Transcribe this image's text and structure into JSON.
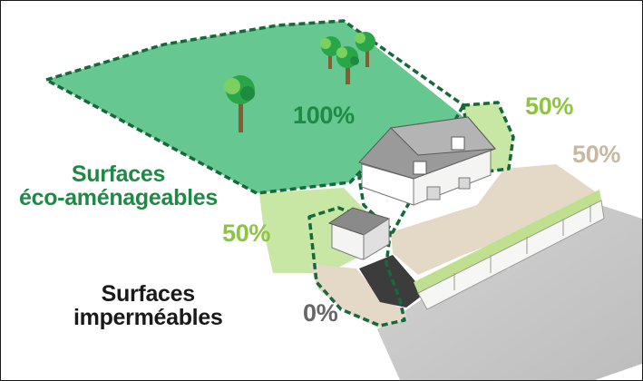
{
  "colors": {
    "dark_green": "#1e8a45",
    "light_green": "#8cc63f",
    "beige": "#c8b89f",
    "grey_text": "#666666",
    "black_text": "#1a1a1a",
    "zone_dark": "#64c48e",
    "zone_light": "#c8e6a4",
    "pavement": "#e3d7c6",
    "shadow": "#c6c6c6"
  },
  "zones": [
    {
      "id": "lawn",
      "percent": "100%"
    },
    {
      "id": "side-garden",
      "percent": "50%"
    },
    {
      "id": "driveway",
      "percent": "50%"
    },
    {
      "id": "front-strip",
      "percent": "50%"
    },
    {
      "id": "path",
      "percent": "0%"
    }
  ],
  "labels": {
    "eco_heading": [
      "Surfaces",
      "éco-aménageables"
    ],
    "impermeable_heading": [
      "Surfaces",
      "imperméables"
    ]
  },
  "icons": [
    "tree-icon",
    "house-icon",
    "garage-icon",
    "fence-icon"
  ]
}
